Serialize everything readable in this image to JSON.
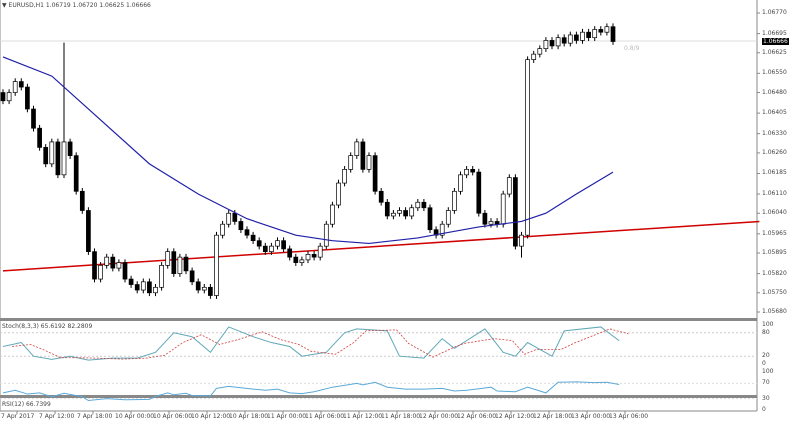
{
  "header": {
    "symbol": "EURUSD,H1",
    "ohlc": "1.06719 1.06720 1.06625 1.06666"
  },
  "price_axis": {
    "ticks": [
      "1.06770",
      "1.06695",
      "1.06625",
      "1.06550",
      "1.06480",
      "1.06405",
      "1.06330",
      "1.06260",
      "1.06185",
      "1.06110",
      "1.06040",
      "1.05965",
      "1.05895",
      "1.05820",
      "1.05750",
      "1.05680"
    ],
    "current": "1.06666",
    "current_tag": "0.8/9"
  },
  "colors": {
    "bull_bear": "#000000",
    "ma": "#1f1fa8",
    "trendline": "#d00000",
    "stoch_main": "#5fa8b8",
    "stoch_signal": "#d04040",
    "rsi": "#5aa8d8"
  },
  "candles_close": [
    1.0645,
    1.0648,
    1.0652,
    1.065,
    1.0642,
    1.0635,
    1.0628,
    1.0622,
    1.063,
    1.0618,
    1.063,
    1.0625,
    1.0612,
    1.0605,
    1.059,
    1.058,
    1.0585,
    1.0588,
    1.0584,
    1.0586,
    1.058,
    1.0578,
    1.0576,
    1.0579,
    1.0575,
    1.0577,
    1.0585,
    1.059,
    1.0582,
    1.0588,
    1.0583,
    1.0579,
    1.0576,
    1.0577,
    1.0574,
    1.0596,
    1.06,
    1.0604,
    1.0601,
    1.0598,
    1.0596,
    1.0594,
    1.0592,
    1.059,
    1.0592,
    1.0594,
    1.0591,
    1.0588,
    1.0586,
    1.0587,
    1.0589,
    1.0588,
    1.0592,
    1.06,
    1.0607,
    1.0615,
    1.062,
    1.0625,
    1.063,
    1.062,
    1.0625,
    1.0612,
    1.0608,
    1.0603,
    1.0604,
    1.0605,
    1.0603,
    1.0606,
    1.0608,
    1.0606,
    1.0598,
    1.0596,
    1.06,
    1.0605,
    1.0612,
    1.0618,
    1.062,
    1.0619,
    1.0604,
    1.06,
    1.0601,
    1.06,
    1.0611,
    1.0617,
    1.0592,
    1.0596,
    1.066,
    1.0662,
    1.0664,
    1.0667,
    1.0665,
    1.0668,
    1.0666,
    1.0669,
    1.0667,
    1.067,
    1.0668,
    1.0671,
    1.067,
    1.0672,
    1.06666
  ],
  "ma_points": [
    [
      0,
      1.0661
    ],
    [
      8,
      1.0654
    ],
    [
      16,
      1.0638
    ],
    [
      24,
      1.0622
    ],
    [
      32,
      1.0611
    ],
    [
      40,
      1.0602
    ],
    [
      48,
      1.0596
    ],
    [
      54,
      1.0594
    ],
    [
      60,
      1.0593
    ],
    [
      68,
      1.0595
    ],
    [
      78,
      1.0599
    ],
    [
      85,
      1.0601
    ],
    [
      89,
      1.0604
    ],
    [
      94,
      1.0611
    ],
    [
      100,
      1.0619
    ]
  ],
  "trendline": [
    [
      0,
      1.0583
    ],
    [
      124,
      1.0601
    ]
  ],
  "stoch": {
    "label": "Stoch(8,3,3) 65.6192 82.2809",
    "levels": [
      "100",
      "80",
      "20",
      "0"
    ],
    "points": [
      [
        0,
        45
      ],
      [
        3,
        55
      ],
      [
        5,
        20
      ],
      [
        8,
        12
      ],
      [
        11,
        20
      ],
      [
        14,
        10
      ],
      [
        18,
        15
      ],
      [
        22,
        15
      ],
      [
        25,
        30
      ],
      [
        28,
        80
      ],
      [
        31,
        70
      ],
      [
        34,
        30
      ],
      [
        37,
        95
      ],
      [
        41,
        70
      ],
      [
        44,
        55
      ],
      [
        47,
        45
      ],
      [
        49,
        20
      ],
      [
        53,
        30
      ],
      [
        56,
        80
      ],
      [
        58,
        90
      ],
      [
        63,
        85
      ],
      [
        65,
        20
      ],
      [
        69,
        15
      ],
      [
        72,
        65
      ],
      [
        74,
        40
      ],
      [
        79,
        90
      ],
      [
        82,
        30
      ],
      [
        84,
        20
      ],
      [
        86,
        55
      ],
      [
        90,
        20
      ],
      [
        92,
        85
      ],
      [
        98,
        95
      ],
      [
        101,
        60
      ]
    ]
  },
  "rsi": {
    "label": "RSI(12) 66.7399",
    "levels": [
      "100",
      "70",
      "30",
      "0"
    ],
    "points": [
      [
        0,
        45
      ],
      [
        2,
        52
      ],
      [
        4,
        42
      ],
      [
        6,
        45
      ],
      [
        8,
        35
      ],
      [
        10,
        44
      ],
      [
        13,
        35
      ],
      [
        14,
        25
      ],
      [
        17,
        30
      ],
      [
        20,
        27
      ],
      [
        24,
        28
      ],
      [
        25,
        36
      ],
      [
        27,
        45
      ],
      [
        28,
        40
      ],
      [
        30,
        44
      ],
      [
        31,
        38
      ],
      [
        34,
        37
      ],
      [
        35,
        57
      ],
      [
        37,
        62
      ],
      [
        41,
        55
      ],
      [
        43,
        52
      ],
      [
        45,
        55
      ],
      [
        47,
        45
      ],
      [
        49,
        43
      ],
      [
        51,
        48
      ],
      [
        54,
        60
      ],
      [
        58,
        70
      ],
      [
        59,
        66
      ],
      [
        61,
        73
      ],
      [
        63,
        60
      ],
      [
        66,
        55
      ],
      [
        69,
        55
      ],
      [
        72,
        57
      ],
      [
        74,
        50
      ],
      [
        76,
        52
      ],
      [
        79,
        58
      ],
      [
        80,
        60
      ],
      [
        81,
        50
      ],
      [
        84,
        48
      ],
      [
        86,
        60
      ],
      [
        89,
        45
      ],
      [
        91,
        73
      ],
      [
        94,
        74
      ],
      [
        97,
        72
      ],
      [
        99,
        73
      ],
      [
        101,
        67
      ]
    ]
  },
  "time_axis": [
    "7 Apr 2017",
    "7 Apr 12:00",
    "7 Apr 18:00",
    "10 Apr 00:00",
    "10 Apr 06:00",
    "10 Apr 12:00",
    "10 Apr 18:00",
    "11 Apr 00:00",
    "11 Apr 06:00",
    "11 Apr 12:00",
    "11 Apr 18:00",
    "12 Apr 00:00",
    "12 Apr 06:00",
    "12 Apr 12:00",
    "12 Apr 18:00",
    "13 Apr 00:00",
    "13 Apr 06:00"
  ]
}
